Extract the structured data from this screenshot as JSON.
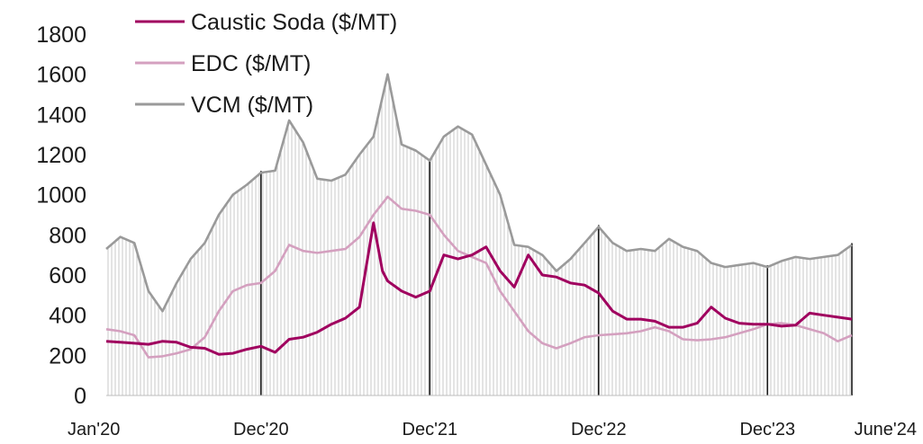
{
  "chart_data": {
    "type": "line",
    "title": "",
    "xlabel": "",
    "ylabel": "",
    "ylim": [
      0,
      1800
    ],
    "yticks": [
      0,
      200,
      400,
      600,
      800,
      1000,
      1200,
      1400,
      1600,
      1800
    ],
    "x_range": [
      "Jan'20",
      "June'24"
    ],
    "xticks": [
      {
        "label": "Jan'20",
        "date": "2020-01"
      },
      {
        "label": "Dec'20",
        "date": "2020-12"
      },
      {
        "label": "Dec'21",
        "date": "2021-12"
      },
      {
        "label": "Dec'22",
        "date": "2022-12"
      },
      {
        "label": "Dec'23",
        "date": "2023-12"
      },
      {
        "label": "June'24",
        "date": "2024-06"
      }
    ],
    "vlines": [
      "2020-12",
      "2021-12",
      "2022-12",
      "2023-12",
      "2024-06"
    ],
    "legend_position": "top-left",
    "grid": false,
    "series": [
      {
        "name": "Caustic Soda ($/MT)",
        "color": "#a0005f",
        "points": [
          [
            "2020-01",
            270
          ],
          [
            "2020-02",
            265
          ],
          [
            "2020-03",
            260
          ],
          [
            "2020-04",
            255
          ],
          [
            "2020-05",
            270
          ],
          [
            "2020-06",
            265
          ],
          [
            "2020-07",
            240
          ],
          [
            "2020-08",
            235
          ],
          [
            "2020-09",
            205
          ],
          [
            "2020-10",
            210
          ],
          [
            "2020-11",
            230
          ],
          [
            "2020-12",
            245
          ],
          [
            "2021-01",
            215
          ],
          [
            "2021-02",
            280
          ],
          [
            "2021-03",
            290
          ],
          [
            "2021-04",
            315
          ],
          [
            "2021-05",
            355
          ],
          [
            "2021-06",
            385
          ],
          [
            "2021-07",
            440
          ],
          [
            "2021-08",
            860
          ],
          [
            "2021-08-20",
            620
          ],
          [
            "2021-09",
            570
          ],
          [
            "2021-10",
            520
          ],
          [
            "2021-11",
            490
          ],
          [
            "2021-12",
            520
          ],
          [
            "2022-01",
            700
          ],
          [
            "2022-02",
            680
          ],
          [
            "2022-03",
            700
          ],
          [
            "2022-04",
            740
          ],
          [
            "2022-05",
            620
          ],
          [
            "2022-06",
            540
          ],
          [
            "2022-07",
            700
          ],
          [
            "2022-08",
            600
          ],
          [
            "2022-09",
            590
          ],
          [
            "2022-10",
            560
          ],
          [
            "2022-11",
            550
          ],
          [
            "2022-12",
            510
          ],
          [
            "2023-01",
            420
          ],
          [
            "2023-02",
            380
          ],
          [
            "2023-03",
            380
          ],
          [
            "2023-04",
            370
          ],
          [
            "2023-05",
            340
          ],
          [
            "2023-06",
            340
          ],
          [
            "2023-07",
            360
          ],
          [
            "2023-08",
            440
          ],
          [
            "2023-09",
            385
          ],
          [
            "2023-10",
            360
          ],
          [
            "2023-11",
            355
          ],
          [
            "2023-12",
            355
          ],
          [
            "2024-01",
            345
          ],
          [
            "2024-02",
            350
          ],
          [
            "2024-03",
            410
          ],
          [
            "2024-04",
            400
          ],
          [
            "2024-05",
            390
          ],
          [
            "2024-06",
            380
          ]
        ]
      },
      {
        "name": "EDC ($/MT)",
        "color": "#d4a0bf",
        "points": [
          [
            "2020-01",
            330
          ],
          [
            "2020-02",
            320
          ],
          [
            "2020-03",
            300
          ],
          [
            "2020-04",
            190
          ],
          [
            "2020-05",
            195
          ],
          [
            "2020-06",
            210
          ],
          [
            "2020-07",
            230
          ],
          [
            "2020-08",
            290
          ],
          [
            "2020-09",
            420
          ],
          [
            "2020-10",
            520
          ],
          [
            "2020-11",
            550
          ],
          [
            "2020-12",
            560
          ],
          [
            "2021-01",
            620
          ],
          [
            "2021-02",
            750
          ],
          [
            "2021-03",
            720
          ],
          [
            "2021-04",
            710
          ],
          [
            "2021-05",
            720
          ],
          [
            "2021-06",
            730
          ],
          [
            "2021-07",
            790
          ],
          [
            "2021-08",
            900
          ],
          [
            "2021-09",
            990
          ],
          [
            "2021-10",
            930
          ],
          [
            "2021-11",
            920
          ],
          [
            "2021-12",
            900
          ],
          [
            "2022-01",
            800
          ],
          [
            "2022-02",
            720
          ],
          [
            "2022-03",
            690
          ],
          [
            "2022-04",
            660
          ],
          [
            "2022-05",
            520
          ],
          [
            "2022-06",
            420
          ],
          [
            "2022-07",
            320
          ],
          [
            "2022-08",
            260
          ],
          [
            "2022-09",
            235
          ],
          [
            "2022-10",
            260
          ],
          [
            "2022-11",
            290
          ],
          [
            "2022-12",
            300
          ],
          [
            "2023-01",
            305
          ],
          [
            "2023-02",
            310
          ],
          [
            "2023-03",
            320
          ],
          [
            "2023-04",
            340
          ],
          [
            "2023-05",
            320
          ],
          [
            "2023-06",
            280
          ],
          [
            "2023-07",
            275
          ],
          [
            "2023-08",
            280
          ],
          [
            "2023-09",
            290
          ],
          [
            "2023-10",
            310
          ],
          [
            "2023-11",
            330
          ],
          [
            "2023-12",
            355
          ],
          [
            "2024-01",
            360
          ],
          [
            "2024-02",
            350
          ],
          [
            "2024-03",
            330
          ],
          [
            "2024-04",
            310
          ],
          [
            "2024-05",
            270
          ],
          [
            "2024-06",
            300
          ]
        ]
      },
      {
        "name": "VCM ($/MT)",
        "color": "#9a9a9a",
        "points": [
          [
            "2020-01",
            730
          ],
          [
            "2020-02",
            790
          ],
          [
            "2020-03",
            760
          ],
          [
            "2020-04",
            520
          ],
          [
            "2020-05",
            420
          ],
          [
            "2020-06",
            560
          ],
          [
            "2020-07",
            680
          ],
          [
            "2020-08",
            760
          ],
          [
            "2020-09",
            900
          ],
          [
            "2020-10",
            1000
          ],
          [
            "2020-11",
            1050
          ],
          [
            "2020-12",
            1110
          ],
          [
            "2021-01",
            1120
          ],
          [
            "2021-02",
            1370
          ],
          [
            "2021-03",
            1260
          ],
          [
            "2021-04",
            1080
          ],
          [
            "2021-05",
            1070
          ],
          [
            "2021-06",
            1100
          ],
          [
            "2021-07",
            1200
          ],
          [
            "2021-08",
            1290
          ],
          [
            "2021-09",
            1600
          ],
          [
            "2021-10",
            1250
          ],
          [
            "2021-11",
            1220
          ],
          [
            "2021-12",
            1170
          ],
          [
            "2022-01",
            1290
          ],
          [
            "2022-02",
            1340
          ],
          [
            "2022-03",
            1300
          ],
          [
            "2022-04",
            1150
          ],
          [
            "2022-05",
            1000
          ],
          [
            "2022-06",
            750
          ],
          [
            "2022-07",
            740
          ],
          [
            "2022-08",
            700
          ],
          [
            "2022-09",
            620
          ],
          [
            "2022-10",
            680
          ],
          [
            "2022-11",
            760
          ],
          [
            "2022-12",
            840
          ],
          [
            "2023-01",
            760
          ],
          [
            "2023-02",
            720
          ],
          [
            "2023-03",
            730
          ],
          [
            "2023-04",
            720
          ],
          [
            "2023-05",
            780
          ],
          [
            "2023-06",
            740
          ],
          [
            "2023-07",
            720
          ],
          [
            "2023-08",
            660
          ],
          [
            "2023-09",
            640
          ],
          [
            "2023-10",
            650
          ],
          [
            "2023-11",
            660
          ],
          [
            "2023-12",
            640
          ],
          [
            "2024-01",
            670
          ],
          [
            "2024-02",
            690
          ],
          [
            "2024-03",
            680
          ],
          [
            "2024-04",
            690
          ],
          [
            "2024-05",
            700
          ],
          [
            "2024-06",
            750
          ]
        ]
      }
    ]
  }
}
